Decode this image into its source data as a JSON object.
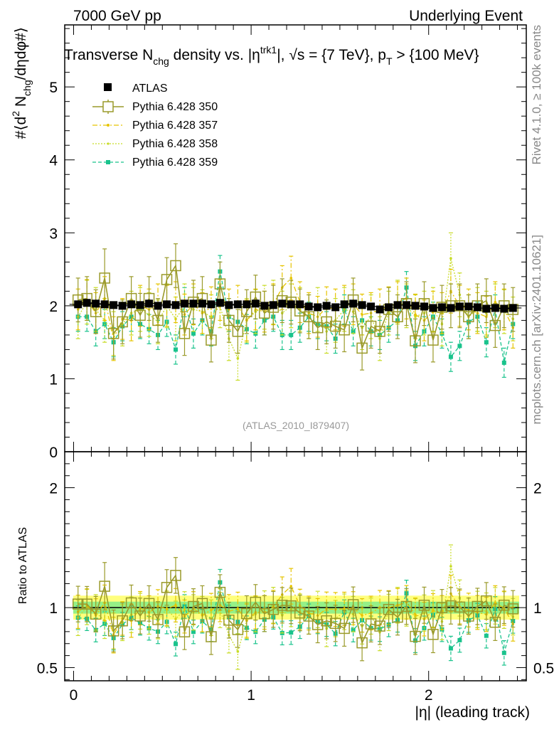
{
  "header": {
    "left_label": "7000 GeV pp",
    "right_label": "Underlying Event"
  },
  "side_labels": {
    "rivet": "Rivet 4.1.0, ≥ 100k events",
    "mcplots": "mcplots.cern.ch [arXiv:2401.10621]"
  },
  "colors": {
    "atlas": "#000000",
    "p350": "#9a9a2a",
    "p357": "#e6c400",
    "p358": "#c8dc28",
    "p359": "#19c38c",
    "band_outer": "#ffff66",
    "band_inner": "#88ee88"
  },
  "chart_data": [
    {
      "type": "scatter",
      "panel": "main",
      "title_parts": {
        "a": "Transverse N",
        "a_sub": "chg",
        "b": " density vs. |η",
        "b_sup": "trk1",
        "c": "|, √s = {7 TeV}, p",
        "c_sub": "T",
        "d": " > {100 MeV}"
      },
      "ylabel_parts": {
        "a": "#⟨d",
        "a_sup": "2",
        "b": " N",
        "b_sub": "chg",
        "c": "/dηdφ#⟩"
      },
      "watermark": "(ATLAS_2010_I879407)",
      "xlim": [
        -0.05,
        2.55
      ],
      "ylim": [
        0,
        5.85
      ],
      "yticks": [
        0,
        1,
        2,
        3,
        4,
        5
      ],
      "yticklabels": [
        "0",
        "1",
        "2",
        "3",
        "4",
        "5"
      ],
      "legend": [
        "ATLAS",
        "Pythia 6.428 350",
        "Pythia 6.428 357",
        "Pythia 6.428 358",
        "Pythia 6.428 359"
      ],
      "x": [
        0.025,
        0.075,
        0.125,
        0.175,
        0.225,
        0.275,
        0.325,
        0.375,
        0.425,
        0.475,
        0.525,
        0.575,
        0.625,
        0.675,
        0.725,
        0.775,
        0.825,
        0.875,
        0.925,
        0.975,
        1.025,
        1.075,
        1.125,
        1.175,
        1.225,
        1.275,
        1.325,
        1.375,
        1.425,
        1.475,
        1.525,
        1.575,
        1.625,
        1.675,
        1.725,
        1.775,
        1.825,
        1.875,
        1.925,
        1.975,
        2.025,
        2.075,
        2.125,
        2.175,
        2.225,
        2.275,
        2.325,
        2.375,
        2.425,
        2.475
      ],
      "series": [
        {
          "name": "ATLAS",
          "style": "data",
          "values": [
            2.02,
            2.04,
            2.03,
            2.02,
            2.01,
            2.0,
            2.02,
            2.01,
            2.03,
            2.0,
            2.02,
            2.01,
            2.03,
            2.03,
            2.03,
            2.02,
            2.04,
            2.01,
            2.02,
            2.02,
            2.03,
            2.0,
            2.01,
            2.03,
            2.02,
            2.02,
            1.99,
            1.98,
            2.0,
            1.98,
            2.02,
            2.03,
            2.01,
            1.99,
            1.95,
            1.98,
            2.01,
            2.01,
            2.0,
            1.99,
            1.97,
            1.98,
            1.97,
            1.99,
            1.99,
            1.98,
            1.96,
            1.97,
            1.96,
            1.97
          ]
        },
        {
          "name": "Pythia 6.428 350",
          "style": "open-square",
          "values": [
            2.08,
            2.1,
            1.92,
            2.38,
            1.62,
            1.78,
            2.1,
            1.87,
            2.1,
            1.8,
            2.36,
            2.55,
            1.62,
            2.05,
            2.1,
            1.53,
            2.3,
            1.8,
            1.65,
            1.92,
            2.12,
            1.9,
            1.98,
            2.07,
            2.05,
            1.93,
            1.85,
            1.7,
            1.78,
            1.72,
            1.67,
            2.08,
            1.42,
            1.72,
            1.65,
            1.95,
            1.85,
            2.03,
            1.52,
            2.03,
            1.53,
            1.98,
            2.0,
            2.0,
            1.85,
            2.0,
            2.07,
            1.73,
            2.0,
            1.95
          ],
          "errors": [
            0.3,
            0.3,
            0.3,
            0.4,
            0.35,
            0.3,
            0.3,
            0.3,
            0.3,
            0.3,
            0.3,
            0.3,
            0.3,
            0.3,
            0.3,
            0.3,
            0.3,
            0.3,
            0.3,
            0.3,
            0.3,
            0.3,
            0.3,
            0.3,
            0.3,
            0.3,
            0.3,
            0.3,
            0.3,
            0.3,
            0.3,
            0.3,
            0.3,
            0.3,
            0.3,
            0.3,
            0.3,
            0.3,
            0.3,
            0.3,
            0.3,
            0.3,
            0.3,
            0.3,
            0.3,
            0.3,
            0.3,
            0.3,
            0.3,
            0.3
          ]
        },
        {
          "name": "Pythia 6.428 357",
          "style": "dashdot-dot",
          "values": [
            1.95,
            2.08,
            1.9,
            2.1,
            1.55,
            1.82,
            1.8,
            2.0,
            1.95,
            2.02,
            2.0,
            2.05,
            1.88,
            2.02,
            1.9,
            1.98,
            2.08,
            1.95,
            2.0,
            1.8,
            1.95,
            1.92,
            2.02,
            2.25,
            2.38,
            2.05,
            1.9,
            1.85,
            1.98,
            1.95,
            2.0,
            2.02,
            1.88,
            1.9,
            1.95,
            1.98,
            2.05,
            2.1,
            1.88,
            1.8,
            1.92,
            1.9,
            2.2,
            2.0,
            1.95,
            1.9,
            1.85,
            2.05,
            1.95,
            1.7
          ],
          "errors": [
            0.28,
            0.28,
            0.28,
            0.3,
            0.3,
            0.28,
            0.28,
            0.28,
            0.28,
            0.28,
            0.28,
            0.28,
            0.28,
            0.28,
            0.28,
            0.28,
            0.28,
            0.28,
            0.28,
            0.28,
            0.28,
            0.28,
            0.28,
            0.3,
            0.3,
            0.28,
            0.28,
            0.28,
            0.28,
            0.28,
            0.28,
            0.28,
            0.28,
            0.28,
            0.28,
            0.28,
            0.28,
            0.28,
            0.28,
            0.28,
            0.28,
            0.28,
            0.3,
            0.28,
            0.28,
            0.28,
            0.28,
            0.28,
            0.28,
            0.28
          ]
        },
        {
          "name": "Pythia 6.428 358",
          "style": "dotted-dot",
          "values": [
            1.85,
            2.05,
            1.95,
            1.8,
            1.62,
            1.75,
            1.9,
            1.95,
            1.88,
            1.78,
            2.0,
            1.82,
            2.0,
            1.95,
            1.92,
            1.85,
            2.0,
            1.55,
            1.28,
            1.8,
            1.92,
            1.98,
            2.05,
            1.9,
            2.0,
            1.95,
            1.85,
            1.95,
            1.65,
            1.8,
            1.95,
            1.92,
            1.7,
            1.85,
            1.55,
            1.9,
            2.05,
            2.0,
            1.85,
            1.9,
            1.95,
            1.75,
            2.65,
            2.15,
            1.85,
            1.95,
            1.9,
            2.0,
            1.92,
            1.82
          ],
          "errors": [
            0.3,
            0.3,
            0.3,
            0.3,
            0.3,
            0.3,
            0.3,
            0.3,
            0.3,
            0.3,
            0.3,
            0.3,
            0.3,
            0.3,
            0.3,
            0.3,
            0.3,
            0.3,
            0.3,
            0.3,
            0.3,
            0.3,
            0.3,
            0.3,
            0.3,
            0.3,
            0.3,
            0.3,
            0.3,
            0.3,
            0.3,
            0.3,
            0.3,
            0.3,
            0.3,
            0.3,
            0.3,
            0.3,
            0.3,
            0.3,
            0.3,
            0.3,
            0.35,
            0.3,
            0.3,
            0.3,
            0.3,
            0.3,
            0.3,
            0.3
          ]
        },
        {
          "name": "Pythia 6.428 359",
          "style": "dashed-square",
          "values": [
            1.85,
            1.85,
            1.65,
            1.75,
            1.5,
            1.72,
            1.85,
            1.75,
            1.68,
            1.6,
            1.78,
            1.4,
            2.05,
            1.62,
            1.8,
            1.65,
            2.47,
            1.85,
            1.78,
            1.68,
            1.62,
            1.8,
            1.85,
            1.6,
            1.6,
            1.7,
            1.85,
            1.75,
            1.72,
            1.55,
            1.95,
            1.65,
            1.8,
            1.65,
            1.6,
            1.7,
            1.8,
            2.25,
            1.45,
            1.65,
            1.85,
            1.62,
            1.3,
            1.45,
            1.78,
            1.85,
            1.5,
            1.95,
            1.22,
            1.75
          ],
          "errors": [
            0.2,
            0.2,
            0.2,
            0.2,
            0.2,
            0.2,
            0.2,
            0.2,
            0.2,
            0.2,
            0.2,
            0.2,
            0.2,
            0.2,
            0.2,
            0.2,
            0.22,
            0.2,
            0.2,
            0.2,
            0.2,
            0.2,
            0.2,
            0.2,
            0.2,
            0.2,
            0.2,
            0.2,
            0.2,
            0.2,
            0.2,
            0.2,
            0.2,
            0.2,
            0.2,
            0.2,
            0.2,
            0.22,
            0.2,
            0.2,
            0.2,
            0.2,
            0.2,
            0.2,
            0.2,
            0.2,
            0.2,
            0.2,
            0.2,
            0.2
          ]
        }
      ]
    },
    {
      "type": "scatter",
      "panel": "ratio",
      "ylabel": "Ratio to ATLAS",
      "xlabel": "|η| (leading track)",
      "xlim": [
        -0.05,
        2.55
      ],
      "ylim": [
        0.39,
        2.3
      ],
      "yticks": [
        0.5,
        1,
        2
      ],
      "yticklabels": [
        "0.5",
        "1",
        "2"
      ],
      "xticks": [
        0,
        1,
        2
      ],
      "xticklabels": [
        "0",
        "1",
        "2"
      ],
      "band_outer_halfwidth": 0.1,
      "band_inner_halfwidth": 0.05,
      "reference_line": 1.0
    }
  ]
}
